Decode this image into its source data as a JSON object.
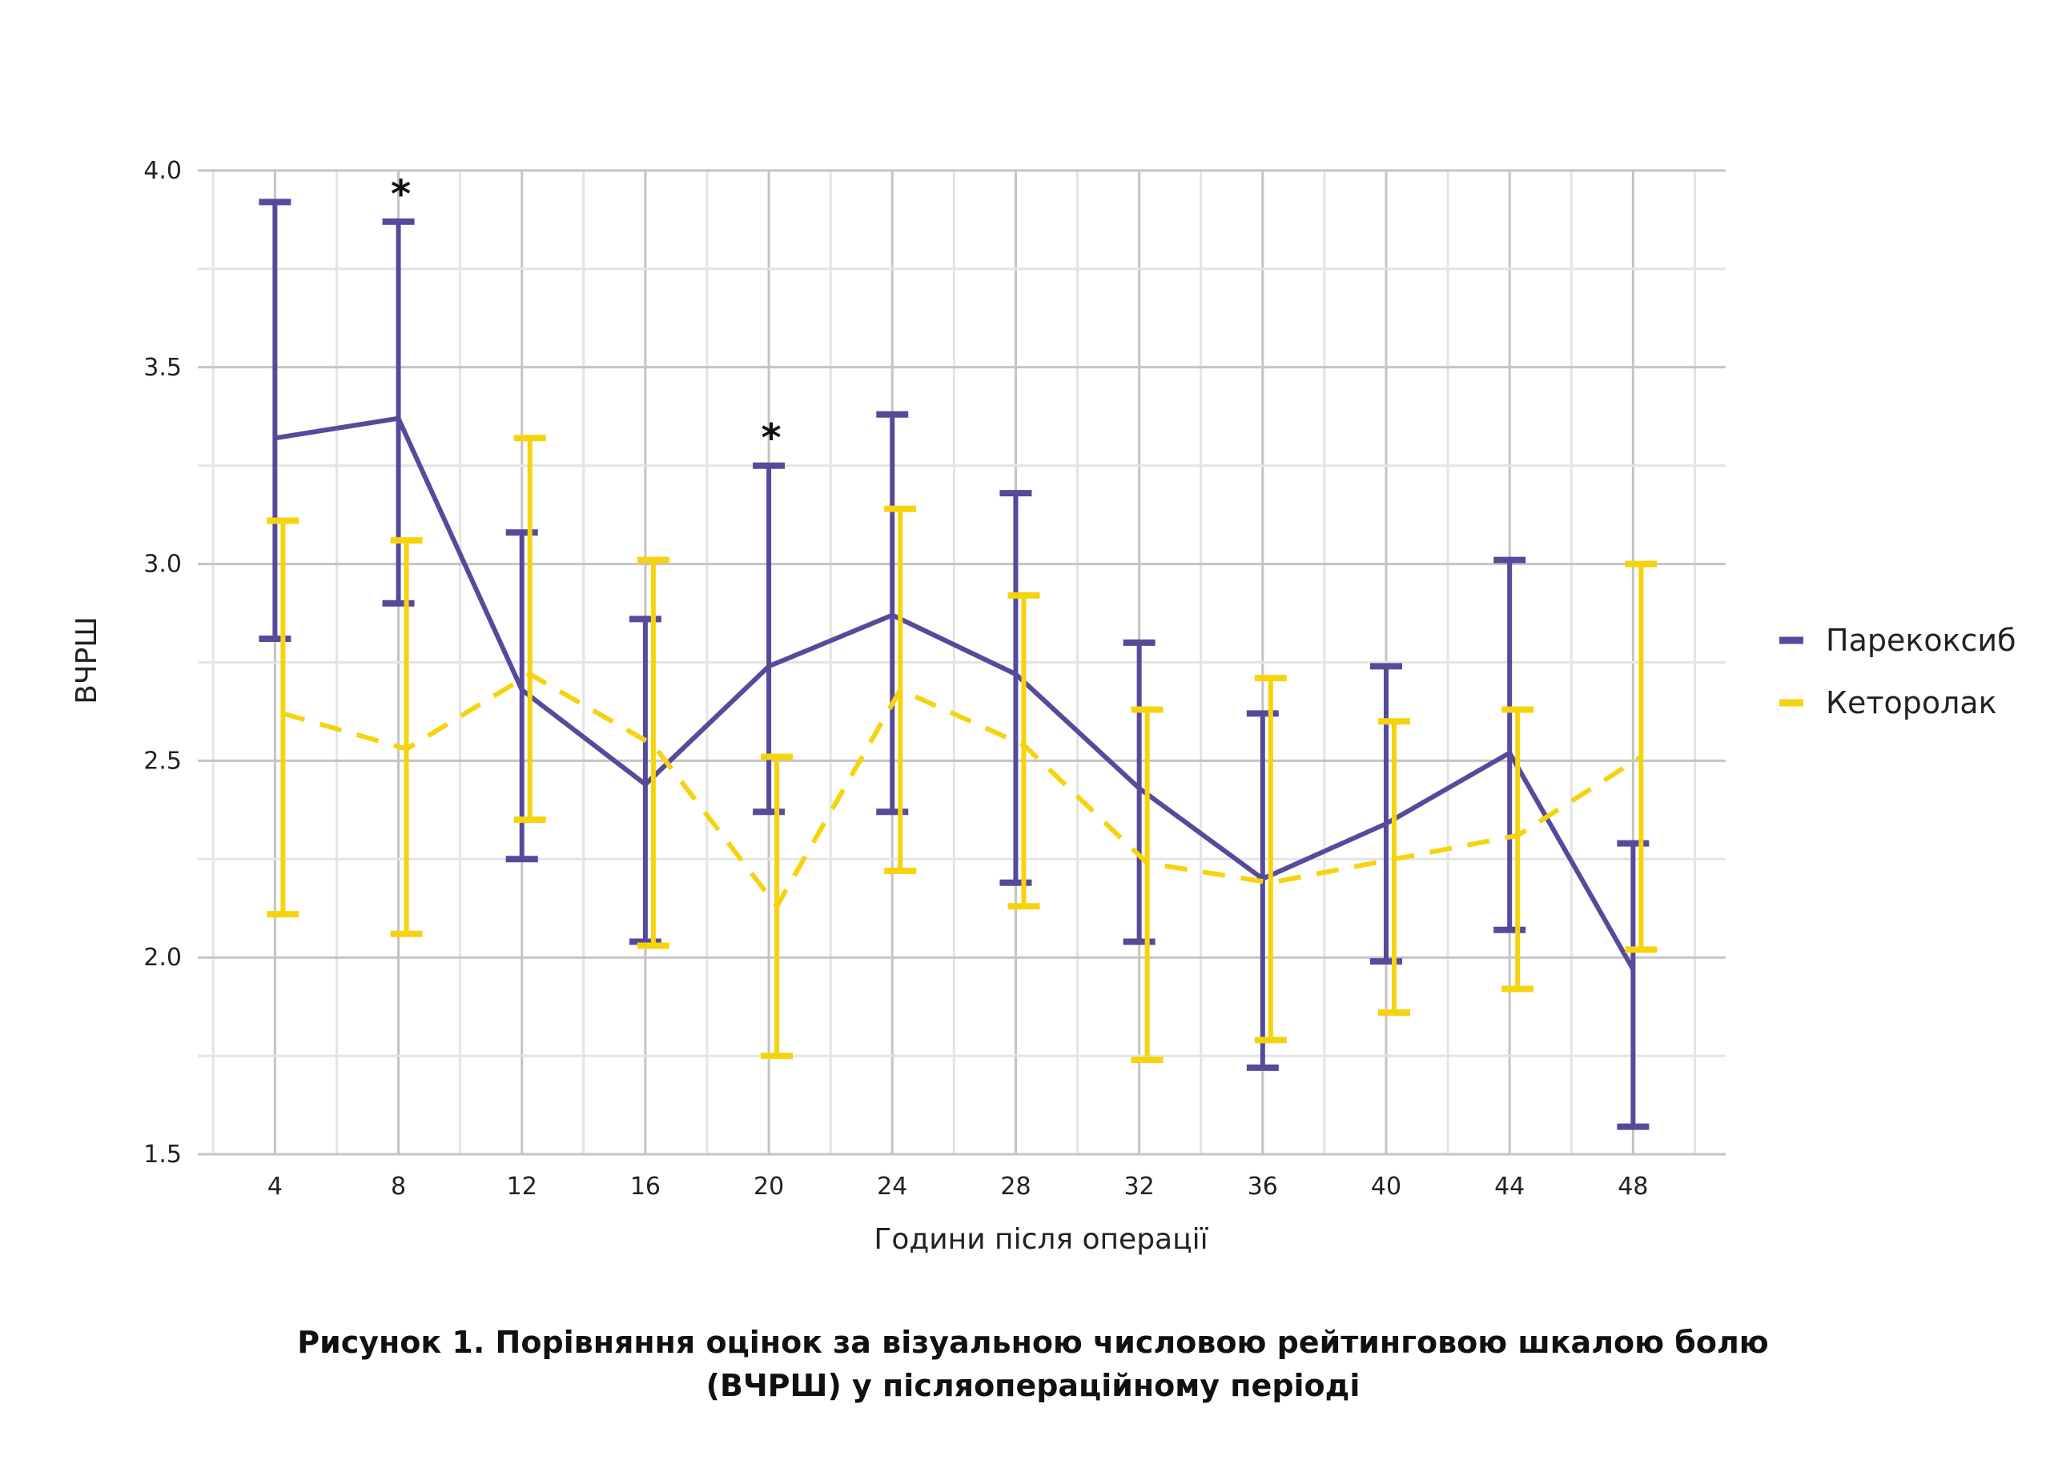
{
  "chart_data": {
    "type": "line",
    "xlabel": "Години після операції",
    "ylabel": "ВЧРШ",
    "x": [
      4,
      8,
      12,
      16,
      20,
      24,
      28,
      32,
      36,
      40,
      44,
      48
    ],
    "xticks": [
      "4",
      "8",
      "12",
      "16",
      "20",
      "24",
      "28",
      "32",
      "36",
      "40",
      "44",
      "48"
    ],
    "yticks": [
      "1.5",
      "2.0",
      "2.5",
      "3.0",
      "3.5",
      "4.0"
    ],
    "xlim": [
      1.5,
      51
    ],
    "ylim": [
      1.5,
      4.0
    ],
    "grid": true,
    "legend_position": "right",
    "significance_markers": [
      {
        "x": 8,
        "label": "*"
      },
      {
        "x": 20,
        "label": "*"
      }
    ],
    "series": [
      {
        "name": "Парекоксиб",
        "color": "#574a9b",
        "style": "solid",
        "values": [
          3.32,
          3.37,
          2.68,
          2.44,
          2.74,
          2.87,
          2.72,
          2.43,
          2.2,
          2.34,
          2.52,
          1.97
        ],
        "upper": [
          3.92,
          3.87,
          3.08,
          2.86,
          3.25,
          3.38,
          3.18,
          2.8,
          2.62,
          2.74,
          3.01,
          2.29
        ],
        "lower": [
          2.81,
          2.9,
          2.25,
          2.04,
          2.37,
          2.37,
          2.19,
          2.04,
          1.72,
          1.99,
          2.07,
          1.57
        ]
      },
      {
        "name": "Кеторолак",
        "color": "#f5d40f",
        "style": "dashed",
        "values": [
          2.62,
          2.53,
          2.72,
          2.54,
          2.13,
          2.68,
          2.54,
          2.24,
          2.19,
          2.25,
          2.31,
          2.51
        ],
        "upper": [
          3.11,
          3.06,
          3.32,
          3.01,
          2.51,
          3.14,
          2.92,
          2.63,
          2.71,
          2.6,
          2.63,
          3.0
        ],
        "lower": [
          2.11,
          2.06,
          2.35,
          2.03,
          1.75,
          2.22,
          2.13,
          1.74,
          1.79,
          1.86,
          1.92,
          2.02
        ]
      }
    ]
  },
  "caption": {
    "line1": "Рисунок 1. Порівняння оцінок за візуальною числовою рейтинговою шкалою болю",
    "line2": "(ВЧРШ) у післяопераційному періоді"
  }
}
